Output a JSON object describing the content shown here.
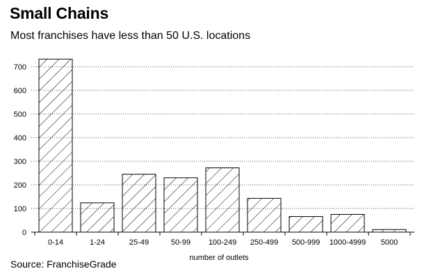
{
  "title": "Small Chains",
  "subtitle": "Most franchises have less than 50 U.S. locations",
  "source": "Source: FranchiseGrade",
  "chart_data": {
    "type": "bar",
    "title": "Small Chains",
    "subtitle": "Most franchises have less than 50 U.S. locations",
    "xlabel": "number of outlets",
    "ylabel": "",
    "categories": [
      "0-14",
      "1-24",
      "25-49",
      "50-99",
      "100-249",
      "250-499",
      "500-999",
      "1000-4999",
      "5000"
    ],
    "values": [
      732,
      124,
      245,
      230,
      272,
      143,
      66,
      75,
      11
    ],
    "ylim": [
      0,
      750
    ],
    "yticks": [
      0,
      100,
      200,
      300,
      400,
      500,
      600,
      700
    ],
    "grid": "horizontal-dotted",
    "bar_fill": "diagonal-hatch",
    "colors": {
      "bar_stroke": "#000000",
      "hatch": "#000000",
      "grid": "#555555",
      "background": "#ffffff"
    }
  }
}
